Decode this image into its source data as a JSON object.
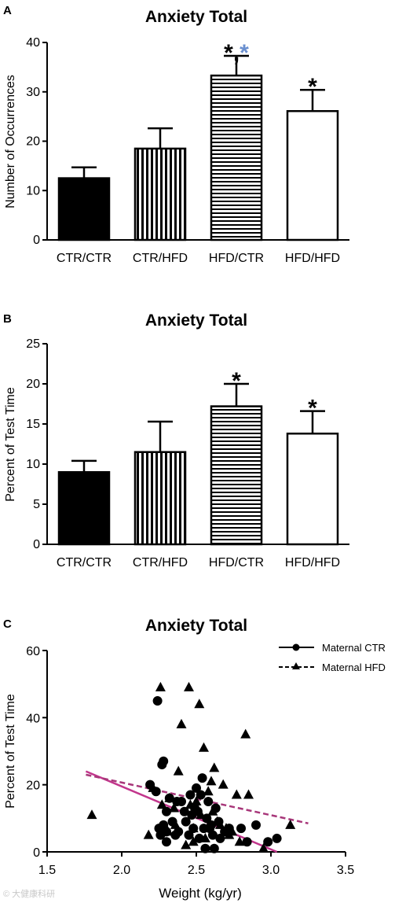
{
  "figure": {
    "watermark": "© 大健康科研"
  },
  "chart_data": [
    {
      "panel": "A",
      "type": "bar",
      "title": "Anxiety Total",
      "xlabel": "",
      "ylabel": "Number of Occurrences",
      "ylim": [
        0,
        40
      ],
      "yticks": [
        0,
        10,
        20,
        30,
        40
      ],
      "categories": [
        "CTR/CTR",
        "CTR/HFD",
        "HFD/CTR",
        "HFD/HFD"
      ],
      "values": [
        12.5,
        18.5,
        33.3,
        26.1
      ],
      "errors": [
        2.2,
        4.1,
        4.0,
        4.3
      ],
      "fills": [
        "solid",
        "vertical",
        "horizontal",
        "white"
      ],
      "stars": [
        {
          "index": 2,
          "marks": [
            {
              "text": "*",
              "color": "#000000"
            },
            {
              "text": ",",
              "color": "#000000"
            },
            {
              "text": "*",
              "color": "#6a8fcf"
            }
          ]
        },
        {
          "index": 3,
          "marks": [
            {
              "text": "*",
              "color": "#000000"
            }
          ]
        }
      ]
    },
    {
      "panel": "B",
      "type": "bar",
      "title": "Anxiety Total",
      "xlabel": "",
      "ylabel": "Percent of Test Time",
      "ylim": [
        0,
        25
      ],
      "yticks": [
        0,
        5,
        10,
        15,
        20,
        25
      ],
      "categories": [
        "CTR/CTR",
        "CTR/HFD",
        "HFD/CTR",
        "HFD/HFD"
      ],
      "values": [
        9.0,
        11.5,
        17.2,
        13.8
      ],
      "errors": [
        1.4,
        3.8,
        2.8,
        2.8
      ],
      "fills": [
        "solid",
        "vertical",
        "horizontal",
        "white"
      ],
      "stars": [
        {
          "index": 2,
          "marks": [
            {
              "text": "*",
              "color": "#000000"
            }
          ]
        },
        {
          "index": 3,
          "marks": [
            {
              "text": "*",
              "color": "#000000"
            }
          ]
        }
      ]
    },
    {
      "panel": "C",
      "type": "scatter",
      "title": "Anxiety Total",
      "xlabel": "Weight (kg/yr)",
      "ylabel": "Percent of Test Time",
      "xlim": [
        1.5,
        3.5
      ],
      "ylim": [
        0,
        60
      ],
      "xticks": [
        1.5,
        2.0,
        2.5,
        3.0,
        3.5
      ],
      "yticks": [
        0,
        20,
        40,
        60
      ],
      "legend_position": "top-right",
      "series": [
        {
          "name": "Maternal CTR",
          "marker": "circle",
          "line_style": "solid",
          "fit": {
            "x": [
              1.76,
              3.04
            ],
            "y": [
              24,
              0
            ]
          },
          "points": [
            [
              2.19,
              20
            ],
            [
              2.23,
              18
            ],
            [
              2.24,
              45
            ],
            [
              2.28,
              27
            ],
            [
              2.27,
              26
            ],
            [
              2.25,
              7
            ],
            [
              2.26,
              5
            ],
            [
              2.28,
              8
            ],
            [
              2.3,
              12
            ],
            [
              2.3,
              3
            ],
            [
              2.32,
              16
            ],
            [
              2.34,
              9
            ],
            [
              2.36,
              5
            ],
            [
              2.37,
              15
            ],
            [
              2.38,
              6
            ],
            [
              2.4,
              15
            ],
            [
              2.42,
              12
            ],
            [
              2.43,
              9
            ],
            [
              2.45,
              5
            ],
            [
              2.46,
              17
            ],
            [
              2.47,
              11
            ],
            [
              2.48,
              7
            ],
            [
              2.49,
              13
            ],
            [
              2.5,
              19
            ],
            [
              2.51,
              12
            ],
            [
              2.52,
              4
            ],
            [
              2.53,
              17
            ],
            [
              2.54,
              22
            ],
            [
              2.55,
              7
            ],
            [
              2.56,
              1
            ],
            [
              2.57,
              10
            ],
            [
              2.58,
              15
            ],
            [
              2.59,
              7
            ],
            [
              2.6,
              8
            ],
            [
              2.61,
              5
            ],
            [
              2.62,
              1
            ],
            [
              2.63,
              13
            ],
            [
              2.65,
              9
            ],
            [
              2.66,
              4
            ],
            [
              2.69,
              6
            ],
            [
              2.72,
              7
            ],
            [
              2.8,
              7
            ],
            [
              2.84,
              3
            ],
            [
              2.9,
              8
            ],
            [
              2.98,
              3
            ],
            [
              3.04,
              4
            ],
            [
              2.3,
              6
            ]
          ]
        },
        {
          "name": "Maternal HFD",
          "marker": "triangle",
          "line_style": "dashed",
          "fit": {
            "x": [
              1.76,
              3.25
            ],
            "y": [
              23,
              8.5
            ]
          },
          "points": [
            [
              1.8,
              11
            ],
            [
              2.18,
              5
            ],
            [
              2.21,
              19
            ],
            [
              2.26,
              49
            ],
            [
              2.27,
              14
            ],
            [
              2.31,
              6
            ],
            [
              2.32,
              16
            ],
            [
              2.35,
              13
            ],
            [
              2.38,
              24
            ],
            [
              2.4,
              38
            ],
            [
              2.43,
              2
            ],
            [
              2.45,
              49
            ],
            [
              2.46,
              14
            ],
            [
              2.48,
              7
            ],
            [
              2.5,
              15
            ],
            [
              2.52,
              44
            ],
            [
              2.53,
              11
            ],
            [
              2.55,
              31
            ],
            [
              2.56,
              4
            ],
            [
              2.58,
              18
            ],
            [
              2.6,
              21
            ],
            [
              2.62,
              25
            ],
            [
              2.64,
              9
            ],
            [
              2.66,
              8
            ],
            [
              2.68,
              20
            ],
            [
              2.7,
              7
            ],
            [
              2.72,
              5
            ],
            [
              2.74,
              6
            ],
            [
              2.77,
              17
            ],
            [
              2.79,
              3
            ],
            [
              2.83,
              35
            ],
            [
              2.85,
              17
            ],
            [
              2.95,
              1
            ],
            [
              3.13,
              8
            ],
            [
              2.48,
              3
            ],
            [
              2.36,
              8
            ],
            [
              2.61,
              12
            ]
          ]
        }
      ]
    }
  ]
}
